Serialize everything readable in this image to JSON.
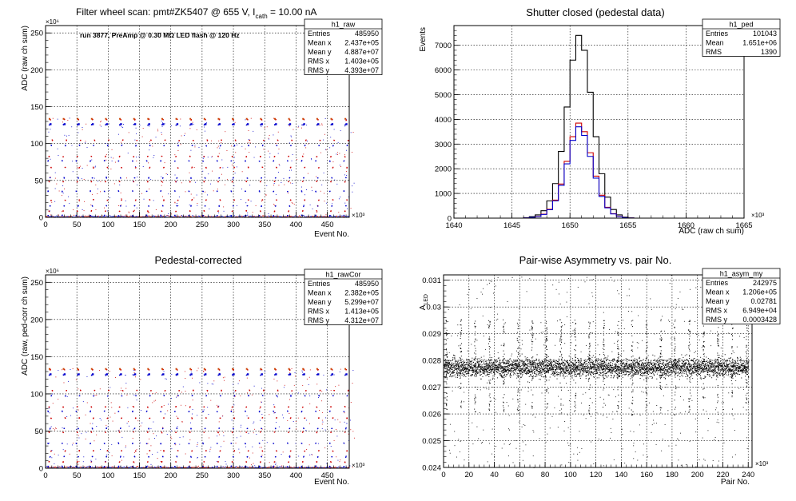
{
  "chart_data": [
    {
      "id": "raw",
      "type": "scatter",
      "title": "Filter wheel scan: pmt#ZK5407 @   655 V, I",
      "title_sub": "cath",
      "title_tail": " = 10.00 nA",
      "annotation": "run 3877, PreAmp @ 0.30 MΩ LED flash @  120 Hz",
      "xlabel": "Event No.",
      "ylabel": "ADC (raw ch sum)",
      "x_multiplier": "×10³",
      "y_multiplier": "×10⁶",
      "xlim": [
        0,
        485
      ],
      "ylim": [
        0,
        260
      ],
      "xticks": [
        0,
        50,
        100,
        150,
        200,
        250,
        300,
        350,
        400,
        450
      ],
      "xtick_labels": [
        "0",
        "50",
        "100",
        "150",
        "200",
        "250",
        "300",
        "350",
        "400",
        "450"
      ],
      "yticks": [
        0,
        50,
        100,
        150,
        200,
        250
      ],
      "ytick_labels": [
        "0",
        "50",
        "100",
        "150",
        "200",
        "250"
      ],
      "grid": true,
      "levels": [
        2,
        8,
        15,
        23,
        35,
        48,
        53,
        67,
        76,
        82,
        97,
        104,
        125,
        132
      ],
      "cycle_period": 22.5,
      "series": [
        {
          "color": "#cc0000"
        },
        {
          "color": "#0000cc"
        }
      ],
      "stats": {
        "name": "h1_raw",
        "rows": [
          {
            "label": "Entries",
            "value": "485950"
          },
          {
            "label": "Mean x",
            "value": "2.437e+05"
          },
          {
            "label": "Mean y",
            "value": "4.887e+07"
          },
          {
            "label": "RMS x",
            "value": "1.403e+05"
          },
          {
            "label": "RMS y",
            "value": "4.393e+07"
          }
        ]
      }
    },
    {
      "id": "ped",
      "type": "histogram",
      "title": "Shutter closed (pedestal data)",
      "xlabel": "ADC (raw ch sum)",
      "ylabel": "Events",
      "x_multiplier": "×10³",
      "xlim": [
        1640,
        1665
      ],
      "ylim": [
        0,
        7800
      ],
      "xticks": [
        1640,
        1645,
        1650,
        1655,
        1660,
        1665
      ],
      "xtick_labels": [
        "1640",
        "1645",
        "1650",
        "1655",
        "1660",
        "1665"
      ],
      "yticks": [
        0,
        1000,
        2000,
        3000,
        4000,
        5000,
        6000,
        7000
      ],
      "ytick_labels": [
        "0",
        "1000",
        "2000",
        "3000",
        "4000",
        "5000",
        "6000",
        "7000"
      ],
      "grid": true,
      "bins": [
        [
          1646.25,
          20,
          10,
          10
        ],
        [
          1646.75,
          60,
          30,
          30
        ],
        [
          1647.25,
          130,
          70,
          65
        ],
        [
          1647.75,
          300,
          160,
          150
        ],
        [
          1648.25,
          700,
          360,
          340
        ],
        [
          1648.75,
          1400,
          730,
          700
        ],
        [
          1649.25,
          2700,
          1380,
          1330
        ],
        [
          1649.75,
          4500,
          2300,
          2200
        ],
        [
          1650.25,
          6400,
          3300,
          3150
        ],
        [
          1650.75,
          7400,
          3850,
          3700
        ],
        [
          1651.25,
          6800,
          3500,
          3350
        ],
        [
          1651.75,
          5100,
          2650,
          2500
        ],
        [
          1652.25,
          3300,
          1700,
          1620
        ],
        [
          1652.75,
          1800,
          930,
          880
        ],
        [
          1653.25,
          850,
          440,
          420
        ],
        [
          1653.75,
          350,
          180,
          170
        ],
        [
          1654.25,
          130,
          70,
          65
        ],
        [
          1654.75,
          40,
          20,
          20
        ],
        [
          1655.25,
          10,
          5,
          5
        ]
      ],
      "series": [
        {
          "color": "#000000"
        },
        {
          "color": "#cc0000"
        },
        {
          "color": "#0000cc"
        }
      ],
      "stats": {
        "name": "h1_ped",
        "rows": [
          {
            "label": "Entries",
            "value": "101043"
          },
          {
            "label": "Mean",
            "value": "1.651e+06"
          },
          {
            "label": "RMS",
            "value": "1390"
          }
        ]
      }
    },
    {
      "id": "rawCor",
      "type": "scatter",
      "title": "Pedestal-corrected",
      "xlabel": "Event No.",
      "ylabel": "ADC (raw, ped-corr ch sum)",
      "x_multiplier": "×10³",
      "y_multiplier": "×10⁶",
      "xlim": [
        0,
        485
      ],
      "ylim": [
        0,
        260
      ],
      "xticks": [
        0,
        50,
        100,
        150,
        200,
        250,
        300,
        350,
        400,
        450
      ],
      "xtick_labels": [
        "0",
        "50",
        "100",
        "150",
        "200",
        "250",
        "300",
        "350",
        "400",
        "450"
      ],
      "yticks": [
        0,
        50,
        100,
        150,
        200,
        250
      ],
      "ytick_labels": [
        "0",
        "50",
        "100",
        "150",
        "200",
        "250"
      ],
      "grid": true,
      "levels": [
        2,
        8,
        15,
        23,
        33,
        48,
        53,
        67,
        76,
        82,
        97,
        104,
        125,
        132
      ],
      "cycle_period": 22.5,
      "series": [
        {
          "color": "#cc0000"
        },
        {
          "color": "#0000cc"
        }
      ],
      "stats": {
        "name": "h1_rawCor",
        "rows": [
          {
            "label": "Entries",
            "value": "485950"
          },
          {
            "label": "Mean x",
            "value": "2.382e+05"
          },
          {
            "label": "Mean y",
            "value": "5.299e+07"
          },
          {
            "label": "RMS x",
            "value": "1.413e+05"
          },
          {
            "label": "RMS y",
            "value": "4.312e+07"
          }
        ]
      }
    },
    {
      "id": "asym",
      "type": "scatter",
      "title": "Pair-wise Asymmetry vs. pair No.",
      "xlabel": "Pair No.",
      "ylabel": "A",
      "ylabel_sub": "LED",
      "x_multiplier": "×10³",
      "xlim": [
        0,
        243
      ],
      "ylim": [
        0.024,
        0.0312
      ],
      "xticks": [
        0,
        20,
        40,
        60,
        80,
        100,
        120,
        140,
        160,
        180,
        200,
        220,
        240
      ],
      "xtick_labels": [
        "0",
        "20",
        "40",
        "60",
        "80",
        "100",
        "120",
        "140",
        "160",
        "180",
        "200",
        "220",
        "240"
      ],
      "yticks": [
        0.024,
        0.025,
        0.026,
        0.027,
        0.028,
        0.029,
        0.03,
        0.031
      ],
      "ytick_labels": [
        "0.024",
        "0.025",
        "0.026",
        "0.027",
        "0.028",
        "0.029",
        "0.03",
        "0.031"
      ],
      "grid": true,
      "band_center": 0.02775,
      "band_halfwidth": 0.00045,
      "spike_period": 11.25,
      "series": [
        {
          "color": "#000000"
        }
      ],
      "stats": {
        "name": "h1_asym_my",
        "rows": [
          {
            "label": "Entries",
            "value": "242975"
          },
          {
            "label": "Mean x",
            "value": "1.206e+05"
          },
          {
            "label": "Mean y",
            "value": "0.02781"
          },
          {
            "label": "RMS x",
            "value": "6.949e+04"
          },
          {
            "label": "RMS y",
            "value": "0.0003428"
          }
        ]
      }
    }
  ]
}
